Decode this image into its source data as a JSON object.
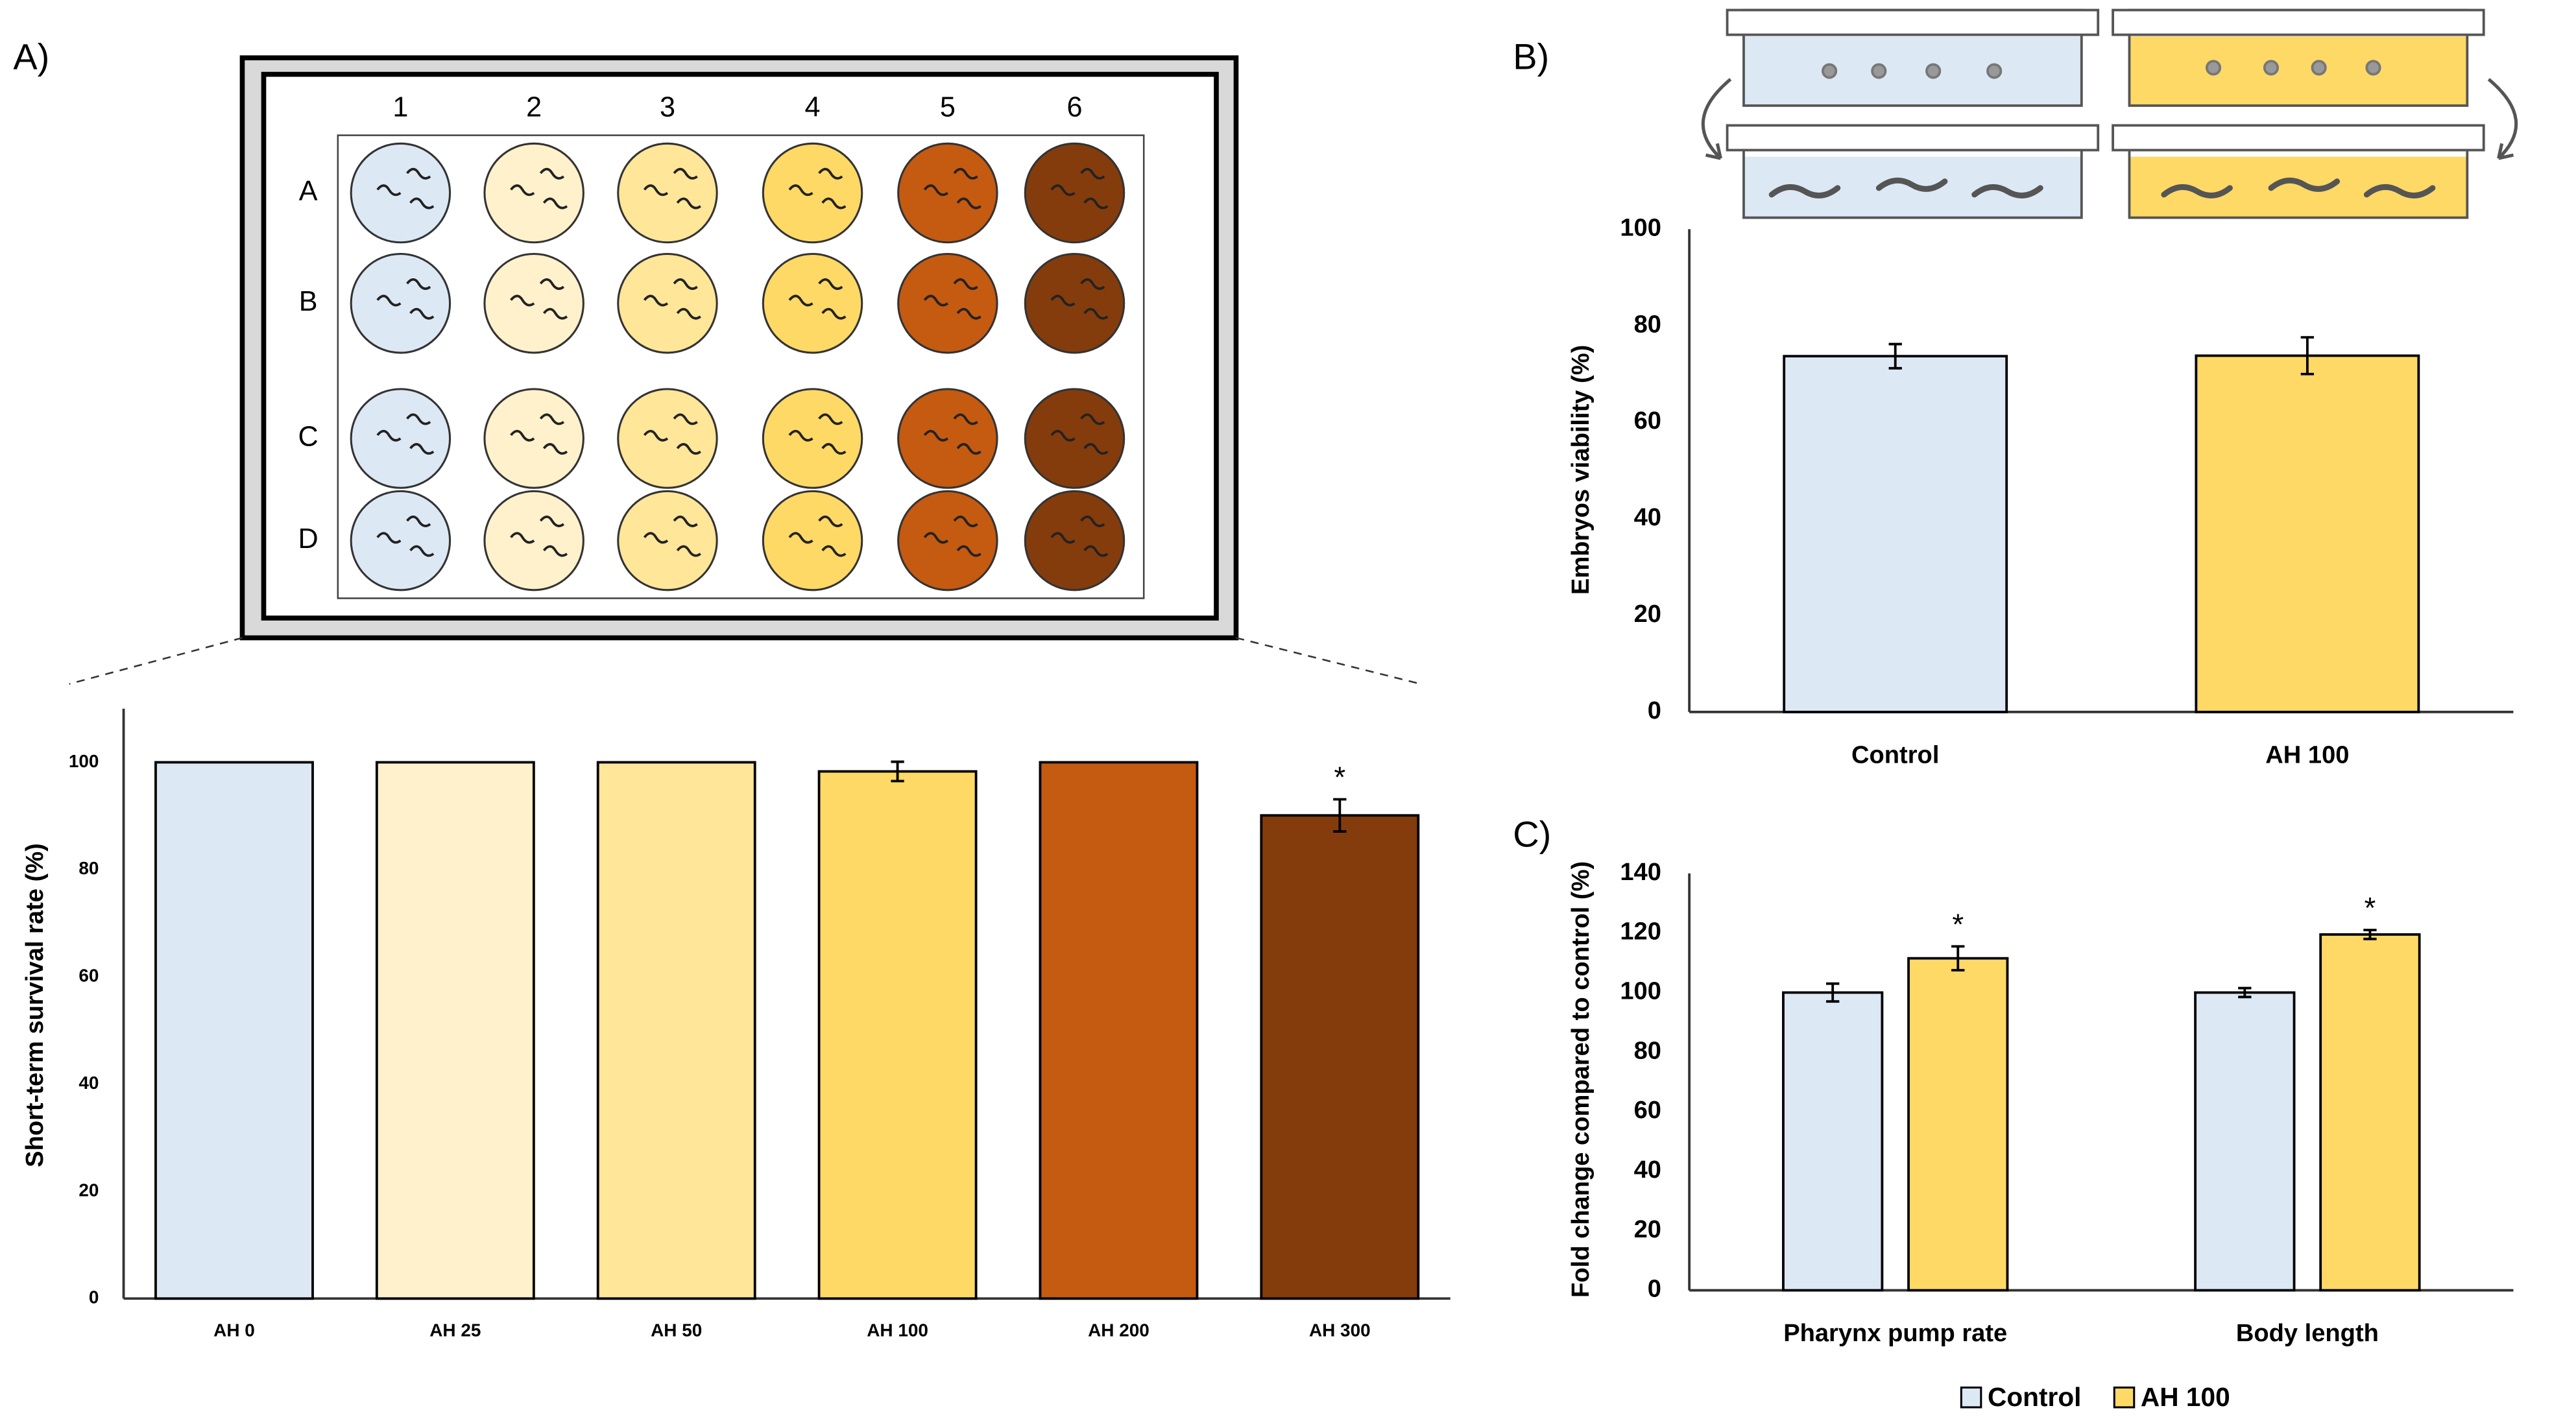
{
  "panel_labels": [
    "A)",
    "B)",
    "C)"
  ],
  "plate": {
    "columns": [
      "1",
      "2",
      "3",
      "4",
      "5",
      "6"
    ],
    "rows": [
      "A",
      "B",
      "C",
      "D"
    ],
    "colors": [
      "#dde8f5",
      "#fff1cc",
      "#ffe699",
      "#ffd966",
      "#c55a11",
      "#843c0c"
    ]
  },
  "chart_data": [
    {
      "type": "bar",
      "ylabel": "Short-term survival rate (%)",
      "categories": [
        "AH 0",
        "AH 25",
        "AH 50",
        "AH 100",
        "AH 200",
        "AH 300"
      ],
      "values": [
        100,
        100,
        100,
        98.3,
        100,
        90.1
      ],
      "errors": [
        null,
        null,
        null,
        1.8,
        null,
        3
      ],
      "significance": [
        null,
        null,
        null,
        null,
        null,
        "*"
      ],
      "colors": [
        "#dde8f5",
        "#fff1cc",
        "#ffe699",
        "#ffd966",
        "#c55a11",
        "#843c0c"
      ],
      "ylim": [
        0,
        110
      ],
      "yticks": [
        0,
        20,
        40,
        60,
        80,
        100
      ]
    },
    {
      "type": "bar",
      "ylabel": "Embryos viability (%)",
      "categories": [
        "Control",
        "AH 100"
      ],
      "values": [
        73.7,
        73.8
      ],
      "errors": [
        2.5,
        3.8
      ],
      "significance": [
        null,
        null
      ],
      "colors": [
        "#dde8f5",
        "#ffd966"
      ],
      "ylim": [
        0,
        100
      ],
      "yticks": [
        0,
        20,
        40,
        60,
        80,
        100
      ]
    },
    {
      "type": "grouped_bar",
      "ylabel": "Fold change compared to control (%)",
      "categories": [
        "Pharynx pump rate",
        "Body length"
      ],
      "series": [
        {
          "name": "Control",
          "color": "#dde8f5",
          "values": [
            100,
            100
          ],
          "errors": [
            3,
            1.5
          ],
          "significance": [
            null,
            null
          ]
        },
        {
          "name": "AH 100",
          "color": "#ffd966",
          "values": [
            111.5,
            119.5
          ],
          "errors": [
            4,
            1.5
          ],
          "significance": [
            "*",
            "*"
          ]
        }
      ],
      "ylim": [
        0,
        140
      ],
      "yticks": [
        0,
        20,
        40,
        60,
        80,
        100,
        120,
        140
      ],
      "legend": "bottom"
    }
  ]
}
